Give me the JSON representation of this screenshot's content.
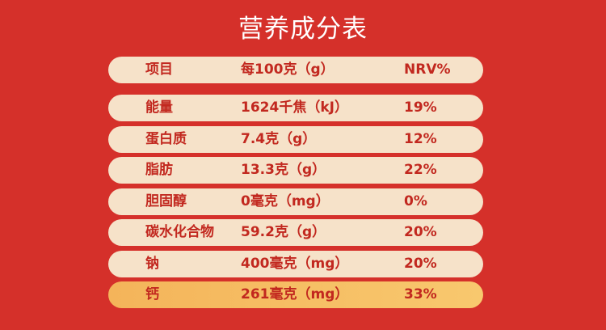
{
  "title": "营养成分表",
  "table": {
    "header": [
      "项目",
      "每100克（g）",
      "NRV%"
    ],
    "rows": [
      [
        "能量",
        "1624千焦（kJ）",
        "19%"
      ],
      [
        "蛋白质",
        "7.4克（g）",
        "12%"
      ],
      [
        "脂肪",
        "13.3克（g）",
        "22%"
      ],
      [
        "胆固醇",
        "0毫克（mg）",
        "0%"
      ],
      [
        "碳水化合物",
        "59.2克（g）",
        "20%"
      ],
      [
        "钠",
        "400毫克（mg）",
        "20%"
      ],
      [
        "钙",
        "261毫克（mg）",
        "33%"
      ]
    ]
  }
}
